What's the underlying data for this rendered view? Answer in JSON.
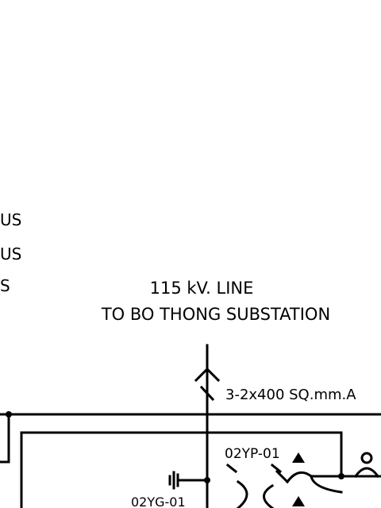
{
  "bus_labels": [
    "US",
    "US",
    "S"
  ],
  "line_title": "115 kV. LINE",
  "line_destination": "TO BO THONG SUBSTATION",
  "cable_spec": "3-2x400 SQ.mm.A",
  "ct_label": "02YP-01",
  "ground_switch_label": "02YG-01",
  "colors": {
    "line": "#000000",
    "background": "#ffffff"
  },
  "symbols": [
    "arrow-up-icon",
    "cable-slash-icon",
    "ground-switch-icon",
    "current-transformer-icon",
    "triangle-marker-icon",
    "node-dot-icon"
  ]
}
